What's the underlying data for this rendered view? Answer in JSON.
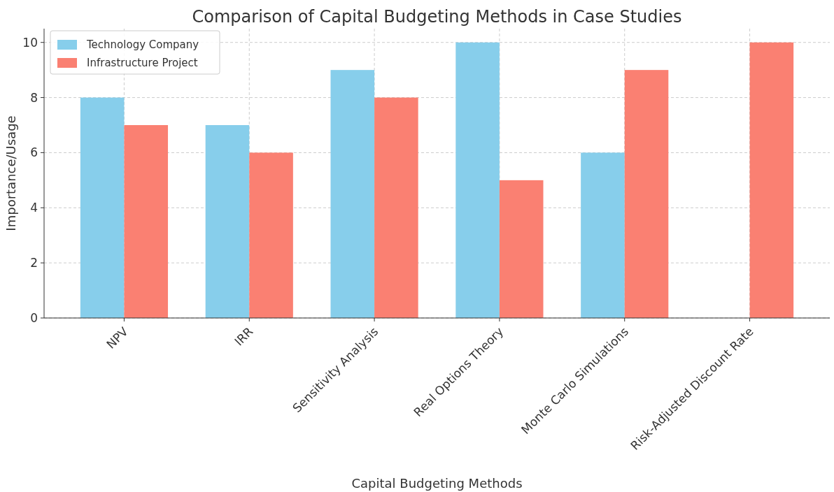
{
  "chart_data": {
    "type": "bar",
    "title": "Comparison of Capital Budgeting Methods in Case Studies",
    "xlabel": "Capital Budgeting Methods",
    "ylabel": "Importance/Usage",
    "categories": [
      "NPV",
      "IRR",
      "Sensitivity Analysis",
      "Real Options Theory",
      "Monte Carlo Simulations",
      "Risk-Adjusted Discount Rate"
    ],
    "series": [
      {
        "name": "Technology Company",
        "color": "#87ceeb",
        "values": [
          8,
          7,
          9,
          10,
          6,
          0
        ]
      },
      {
        "name": "Infrastructure Project",
        "color": "#fa8072",
        "values": [
          7,
          6,
          8,
          5,
          9,
          10
        ]
      }
    ],
    "ylim": [
      0,
      10.5
    ],
    "yticks": [
      0,
      2,
      4,
      6,
      8,
      10
    ],
    "grid": true,
    "legend": "top left"
  }
}
